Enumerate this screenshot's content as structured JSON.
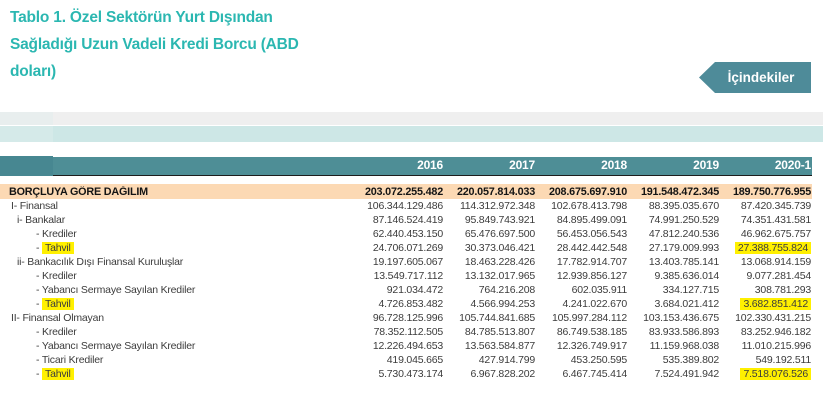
{
  "header": {
    "title_lines": [
      "Tablo 1. Özel Sektörün Yurt Dışından",
      "Sağladığı Uzun Vadeli Kredi Borcu (ABD",
      "doları)"
    ],
    "title_color": "#2bb7b1",
    "toc_button": {
      "label": "İçindekiler",
      "bg": "#4e8b99"
    }
  },
  "table": {
    "columns": {
      "years": [
        "2016",
        "2017",
        "2018",
        "2019",
        "2020-1"
      ]
    },
    "header_bg": "#4e8e96",
    "section_row_bg": "#fcd9b4",
    "highlight_color": "#fff000",
    "rows": [
      {
        "prefix": "",
        "label": "BORÇLUYA GÖRE DAĞILIM",
        "indent": 0,
        "style": "section",
        "label_highlight": false,
        "highlight_last": false,
        "values": [
          "203.072.255.482",
          "220.057.814.033",
          "208.675.697.910",
          "191.548.472.345",
          "189.750.776.955"
        ]
      },
      {
        "prefix": "",
        "label": "I- Finansal",
        "indent": 1,
        "style": "normal",
        "label_highlight": false,
        "highlight_last": false,
        "values": [
          "106.344.129.486",
          "114.312.972.348",
          "102.678.413.798",
          "88.395.035.670",
          "87.420.345.739"
        ]
      },
      {
        "prefix": "",
        "label": "i- Bankalar",
        "indent": 2,
        "style": "normal",
        "label_highlight": false,
        "highlight_last": false,
        "values": [
          "87.146.524.419",
          "95.849.743.921",
          "84.895.499.091",
          "74.991.250.529",
          "74.351.431.581"
        ]
      },
      {
        "prefix": "",
        "label": "- Krediler",
        "indent": 3,
        "style": "normal",
        "label_highlight": false,
        "highlight_last": false,
        "values": [
          "62.440.453.150",
          "65.476.697.500",
          "56.453.056.543",
          "47.812.240.536",
          "46.962.675.757"
        ]
      },
      {
        "prefix": "- ",
        "label": "Tahvil",
        "indent": 3,
        "style": "normal",
        "label_highlight": true,
        "highlight_last": true,
        "values": [
          "24.706.071.269",
          "30.373.046.421",
          "28.442.442.548",
          "27.179.009.993",
          "27.388.755.824"
        ]
      },
      {
        "prefix": "",
        "label": "ii- Bankacılık Dışı Finansal Kuruluşlar",
        "indent": 2,
        "style": "normal",
        "label_highlight": false,
        "highlight_last": false,
        "values": [
          "19.197.605.067",
          "18.463.228.426",
          "17.782.914.707",
          "13.403.785.141",
          "13.068.914.159"
        ]
      },
      {
        "prefix": "",
        "label": "- Krediler",
        "indent": 3,
        "style": "normal",
        "label_highlight": false,
        "highlight_last": false,
        "values": [
          "13.549.717.112",
          "13.132.017.965",
          "12.939.856.127",
          "9.385.636.014",
          "9.077.281.454"
        ]
      },
      {
        "prefix": "",
        "label": "- Yabancı Sermaye Sayılan Krediler",
        "indent": 3,
        "style": "normal",
        "label_highlight": false,
        "highlight_last": false,
        "values": [
          "921.034.472",
          "764.216.208",
          "602.035.911",
          "334.127.715",
          "308.781.293"
        ]
      },
      {
        "prefix": "- ",
        "label": "Tahvil",
        "indent": 3,
        "style": "normal",
        "label_highlight": true,
        "highlight_last": true,
        "values": [
          "4.726.853.482",
          "4.566.994.253",
          "4.241.022.670",
          "3.684.021.412",
          "3.682.851.412"
        ]
      },
      {
        "prefix": "",
        "label": "II- Finansal Olmayan",
        "indent": 1,
        "style": "normal",
        "label_highlight": false,
        "highlight_last": false,
        "values": [
          "96.728.125.996",
          "105.744.841.685",
          "105.997.284.112",
          "103.153.436.675",
          "102.330.431.215"
        ]
      },
      {
        "prefix": "",
        "label": "- Krediler",
        "indent": 3,
        "style": "normal",
        "label_highlight": false,
        "highlight_last": false,
        "values": [
          "78.352.112.505",
          "84.785.513.807",
          "86.749.538.185",
          "83.933.586.893",
          "83.252.946.182"
        ]
      },
      {
        "prefix": "",
        "label": "- Yabancı Sermaye Sayılan Krediler",
        "indent": 3,
        "style": "normal",
        "label_highlight": false,
        "highlight_last": false,
        "values": [
          "12.226.494.653",
          "13.563.584.877",
          "12.326.749.917",
          "11.159.968.038",
          "11.010.215.996"
        ]
      },
      {
        "prefix": "",
        "label": "- Ticari Krediler",
        "indent": 3,
        "style": "normal",
        "label_highlight": false,
        "highlight_last": false,
        "values": [
          "419.045.665",
          "427.914.799",
          "453.250.595",
          "535.389.802",
          "549.192.511"
        ]
      },
      {
        "prefix": "- ",
        "label": "Tahvil",
        "indent": 3,
        "style": "normal",
        "label_highlight": true,
        "highlight_last": true,
        "values": [
          "5.730.473.174",
          "6.967.828.202",
          "6.467.745.414",
          "7.524.491.942",
          "7.518.076.526"
        ]
      }
    ]
  }
}
